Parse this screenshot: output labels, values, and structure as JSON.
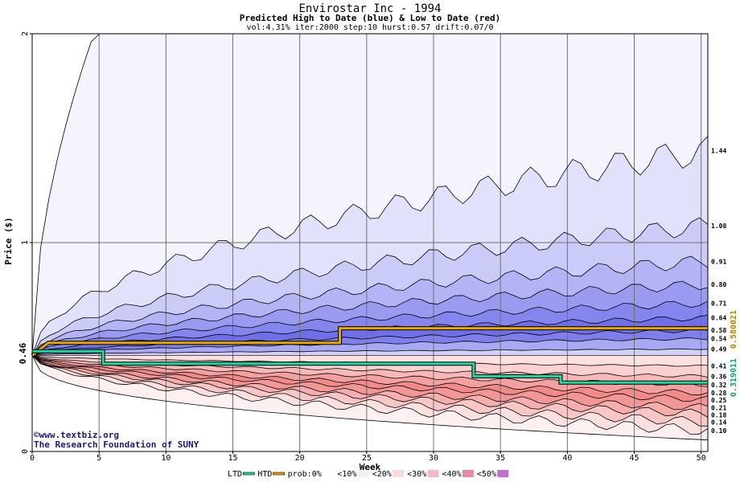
{
  "chart_data": {
    "type": "area",
    "title": "Envirostar Inc - 1994",
    "subtitle": "Predicted High to Date (blue) &  Low to Date (red)",
    "params": "vol:4.31% iter:2000 step:10 hurst:0.57 drift:0.07/0",
    "xlabel": "Week",
    "ylabel": "Price ($)",
    "xlim": [
      0,
      50.5
    ],
    "ylim": [
      0,
      2
    ],
    "x_ticks": [
      "0",
      "5",
      "10",
      "15",
      "20",
      "25",
      "30",
      "35",
      "40",
      "45",
      "50"
    ],
    "y_ticks": [
      "0",
      "1",
      "2"
    ],
    "start_price": 0.46,
    "start_price_label": "0.46",
    "high_quantiles_end": [
      {
        "label": "1.44",
        "value": 1.44
      },
      {
        "label": "1.08",
        "value": 1.08
      },
      {
        "label": "0.91",
        "value": 0.91
      },
      {
        "label": "0.80",
        "value": 0.8
      },
      {
        "label": "0.71",
        "value": 0.71
      },
      {
        "label": "0.64",
        "value": 0.64
      },
      {
        "label": "0.58",
        "value": 0.58
      },
      {
        "label": "0.54",
        "value": 0.54
      },
      {
        "label": "0.49",
        "value": 0.49
      }
    ],
    "low_quantiles_end": [
      {
        "label": "0.41",
        "value": 0.41
      },
      {
        "label": "0.36",
        "value": 0.36
      },
      {
        "label": "0.32",
        "value": 0.32
      },
      {
        "label": "0.28",
        "value": 0.28
      },
      {
        "label": "0.25",
        "value": 0.25
      },
      {
        "label": "0.21",
        "value": 0.21
      },
      {
        "label": "0.18",
        "value": 0.18
      },
      {
        "label": "0.14",
        "value": 0.14
      },
      {
        "label": "0.10",
        "value": 0.1
      }
    ],
    "htd_series": {
      "name": "HTD",
      "value_label": "0.580021",
      "color": "#e8a800",
      "steps": [
        [
          0,
          0.46
        ],
        [
          1.2,
          0.52
        ],
        [
          23,
          0.52
        ],
        [
          23,
          0.59
        ],
        [
          50.5,
          0.59
        ]
      ]
    },
    "ltd_series": {
      "name": "LTD",
      "value_label": "0.319011",
      "color": "#20d8a0",
      "steps": [
        [
          0,
          0.48
        ],
        [
          5.3,
          0.48
        ],
        [
          5.3,
          0.42
        ],
        [
          33,
          0.42
        ],
        [
          33,
          0.36
        ],
        [
          39.5,
          0.36
        ],
        [
          39.5,
          0.33
        ],
        [
          50.5,
          0.33
        ]
      ]
    },
    "high_fill_colors": [
      "#f4f4fd",
      "#e1e1fb",
      "#cbcbf8",
      "#b3b3f5",
      "#9a9af1",
      "#8585ee",
      "#6f6fea",
      "#7f7fec",
      "#a8a8f3",
      "#d0d0f9"
    ],
    "low_fill_colors": [
      "#fde0e0",
      "#fbd0d0",
      "#f8b8b8",
      "#f5a0a0",
      "#f28a8a",
      "#f39696",
      "#f6aeae",
      "#f9c6c6",
      "#fce0e0",
      "#fdf0f0"
    ],
    "legend": [
      {
        "label": "LTD",
        "color": "#20d8a0"
      },
      {
        "label": "HTD",
        "color": "#e8a800"
      },
      {
        "label": "prob:0%",
        "color": "#ffffff"
      },
      {
        "label": "<10%",
        "color": "#f0f0fc"
      },
      {
        "label": "<20%",
        "color": "#fbdada"
      },
      {
        "label": "<30%",
        "color": "#f4b8c8"
      },
      {
        "label": "<40%",
        "color": "#ea8aa0"
      },
      {
        "label": "<50%",
        "color": "#c070d0"
      }
    ],
    "credit_line1": "www.textbiz.org",
    "credit_line2": "The Research Foundation of SUNY",
    "grid": true
  }
}
